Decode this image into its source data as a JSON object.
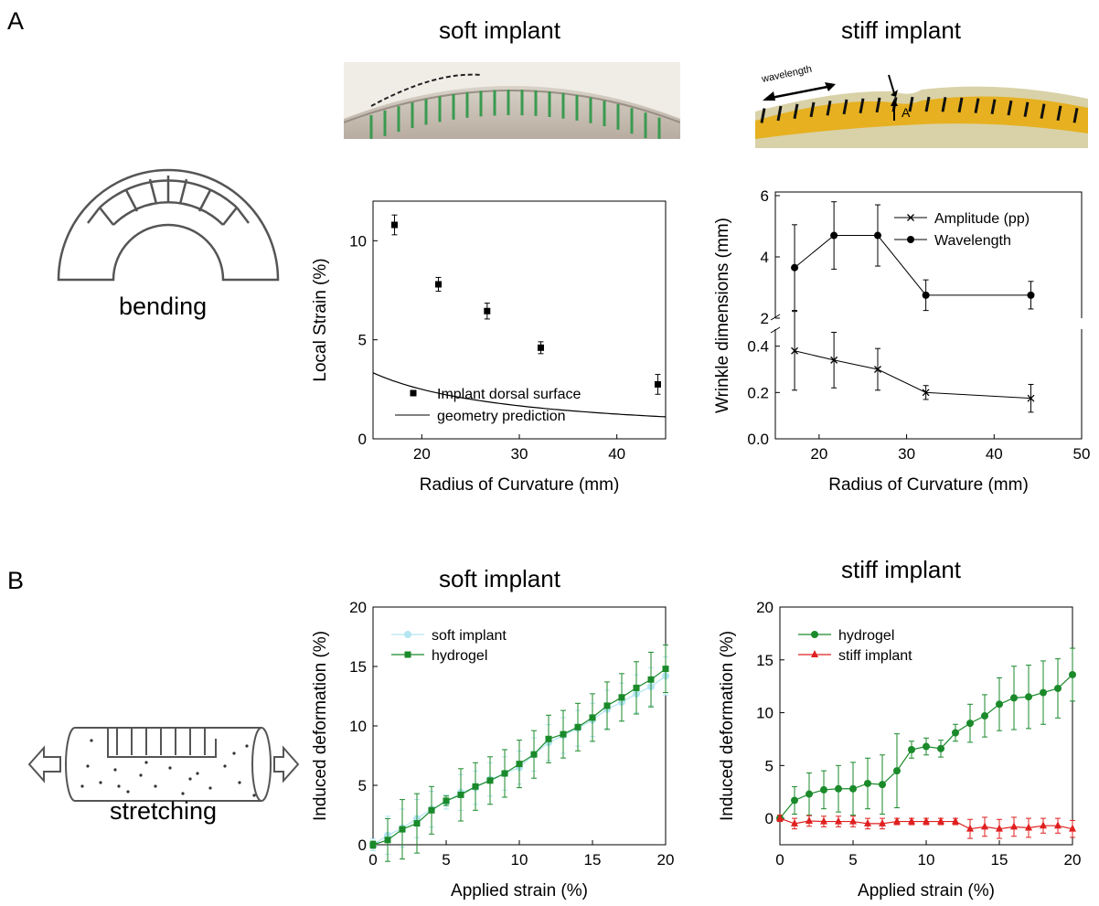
{
  "panels": {
    "A": {
      "letter": "A",
      "titles": {
        "soft": "soft implant",
        "stiff": "stiff implant"
      },
      "photo_labels": {
        "wavelength": "wavelength",
        "amplitude": "A"
      },
      "caption": "bending"
    },
    "B": {
      "letter": "B",
      "titles": {
        "soft": "soft implant",
        "stiff": "stiff implant"
      },
      "caption": "stretching"
    }
  },
  "chart_data": [
    {
      "id": "local-strain",
      "type": "scatter",
      "xlabel": "Radius of Curvature (mm)",
      "ylabel": "Local Strain (%)",
      "xlim": [
        15,
        45
      ],
      "ylim": [
        0,
        12
      ],
      "xticks": [
        20,
        30,
        40
      ],
      "yticks": [
        0,
        5,
        10
      ],
      "legend_position": "bottom-left",
      "series": [
        {
          "name": "Implant dorsal surface",
          "kind": "points",
          "x": [
            17.2,
            21.7,
            26.7,
            32.2,
            44.2
          ],
          "y": [
            10.8,
            7.8,
            6.45,
            4.6,
            2.75
          ],
          "err": [
            0.5,
            0.35,
            0.4,
            0.3,
            0.5
          ]
        },
        {
          "name": "geometry prediction",
          "kind": "curve",
          "formula": "50/r"
        }
      ]
    },
    {
      "id": "wrinkle-dimensions",
      "type": "line",
      "xlabel": "Radius of Curvature (mm)",
      "ylabel": "Wrinkle dimensions (mm)",
      "xlim": [
        15,
        50
      ],
      "xticks": [
        20,
        30,
        40,
        50
      ],
      "broken_axis": true,
      "upper_ylim": [
        2,
        6
      ],
      "upper_yticks": [
        2,
        4,
        6
      ],
      "lower_ylim": [
        0,
        0.45
      ],
      "lower_yticks": [
        "0.0",
        "0.2",
        "0.4"
      ],
      "legend_position": "top-right",
      "series": [
        {
          "name": "Amplitude (pp)",
          "marker": "x",
          "axis": "lower",
          "x": [
            17.2,
            21.7,
            26.7,
            32.2,
            44.2
          ],
          "y": [
            0.38,
            0.34,
            0.3,
            0.2,
            0.175
          ],
          "err": [
            0.17,
            0.12,
            0.09,
            0.03,
            0.06
          ]
        },
        {
          "name": "Wavelength",
          "marker": "circle",
          "axis": "upper",
          "x": [
            17.2,
            21.7,
            26.7,
            32.2,
            44.2
          ],
          "y": [
            3.65,
            4.7,
            4.7,
            2.75,
            2.75
          ],
          "err": [
            1.4,
            1.1,
            1.0,
            0.5,
            0.45
          ]
        }
      ]
    },
    {
      "id": "soft-stretch",
      "type": "line",
      "xlabel": "Applied strain (%)",
      "ylabel": "Induced deformation (%)",
      "xlim": [
        0,
        20
      ],
      "ylim": [
        0,
        20
      ],
      "xticks": [
        0,
        5,
        10,
        15,
        20
      ],
      "yticks": [
        0,
        5,
        10,
        15,
        20
      ],
      "legend_position": "top-left",
      "series": [
        {
          "name": "soft implant",
          "marker": "circle",
          "color": "#b3e5f2",
          "x": [
            0,
            1,
            2,
            3,
            4,
            5,
            6,
            7,
            8,
            9,
            10,
            11,
            12,
            13,
            14,
            15,
            16,
            17,
            18,
            19,
            20
          ],
          "y": [
            0,
            0.8,
            1.4,
            2.2,
            3.0,
            3.6,
            4.4,
            4.8,
            5.5,
            6.0,
            6.5,
            7.6,
            8.6,
            9.2,
            9.8,
            10.5,
            11.4,
            12.0,
            12.7,
            13.3,
            14.2
          ],
          "err": [
            0.5,
            1.6,
            1.6,
            1.6,
            1.5,
            0.6,
            1.5,
            1.4,
            1.4,
            1.4,
            1.4,
            1.4,
            1.5,
            1.5,
            1.5,
            1.4,
            1.6,
            1.6,
            1.6,
            1.6,
            1.6
          ]
        },
        {
          "name": "hydrogel",
          "marker": "square",
          "color": "#1a8a2a",
          "x": [
            0,
            1,
            2,
            3,
            4,
            5,
            6,
            7,
            8,
            9,
            10,
            11,
            12,
            13,
            14,
            15,
            16,
            17,
            18,
            19,
            20
          ],
          "y": [
            0,
            0.4,
            1.3,
            1.8,
            2.9,
            3.7,
            4.2,
            4.9,
            5.4,
            6.0,
            6.8,
            7.6,
            8.9,
            9.3,
            9.9,
            10.7,
            11.7,
            12.4,
            13.2,
            13.9,
            14.8
          ],
          "err": [
            0.3,
            1.8,
            2.5,
            2.5,
            2.0,
            0.4,
            2.2,
            2.0,
            2.0,
            2.0,
            2.0,
            2.0,
            2.0,
            2.0,
            2.0,
            2.0,
            2.0,
            2.0,
            2.2,
            2.3,
            2.0
          ]
        }
      ]
    },
    {
      "id": "stiff-stretch",
      "type": "line",
      "xlabel": "Applied strain (%)",
      "ylabel": "Induced deformation (%)",
      "xlim": [
        0,
        20
      ],
      "ylim": [
        -2.5,
        20
      ],
      "xticks": [
        0,
        5,
        10,
        15,
        20
      ],
      "yticks": [
        0,
        5,
        10,
        15,
        20
      ],
      "legend_position": "top-left",
      "series": [
        {
          "name": "hydrogel",
          "marker": "circle",
          "color": "#1a8a2a",
          "x": [
            0,
            1,
            2,
            3,
            4,
            5,
            6,
            7,
            8,
            9,
            10,
            11,
            12,
            13,
            14,
            15,
            16,
            17,
            18,
            19,
            20
          ],
          "y": [
            0,
            1.7,
            2.3,
            2.7,
            2.8,
            2.8,
            3.3,
            3.2,
            4.5,
            6.5,
            6.8,
            6.6,
            8.1,
            9.0,
            9.7,
            10.8,
            11.4,
            11.5,
            11.9,
            12.3,
            13.6
          ],
          "err": [
            0.3,
            1.3,
            2.0,
            1.8,
            2.2,
            2.5,
            2.4,
            2.8,
            3.5,
            0.8,
            0.8,
            0.8,
            0.8,
            1.8,
            2.0,
            2.5,
            3.0,
            3.0,
            3.0,
            2.8,
            2.5
          ]
        },
        {
          "name": "stiff implant",
          "marker": "triangle",
          "color": "#e02020",
          "x": [
            0,
            1,
            2,
            3,
            4,
            5,
            6,
            7,
            8,
            9,
            10,
            11,
            12,
            13,
            14,
            15,
            16,
            17,
            18,
            19,
            20
          ],
          "y": [
            0,
            -0.5,
            -0.25,
            -0.3,
            -0.3,
            -0.3,
            -0.5,
            -0.5,
            -0.3,
            -0.3,
            -0.3,
            -0.3,
            -0.3,
            -1.0,
            -0.8,
            -1.0,
            -0.8,
            -0.9,
            -0.7,
            -0.7,
            -1.0
          ],
          "err": [
            0.3,
            0.5,
            0.5,
            0.5,
            0.5,
            0.5,
            0.5,
            0.5,
            0.3,
            0.3,
            0.3,
            0.3,
            0.3,
            0.9,
            0.9,
            0.9,
            0.9,
            0.9,
            0.7,
            0.7,
            0.8
          ]
        }
      ]
    }
  ]
}
